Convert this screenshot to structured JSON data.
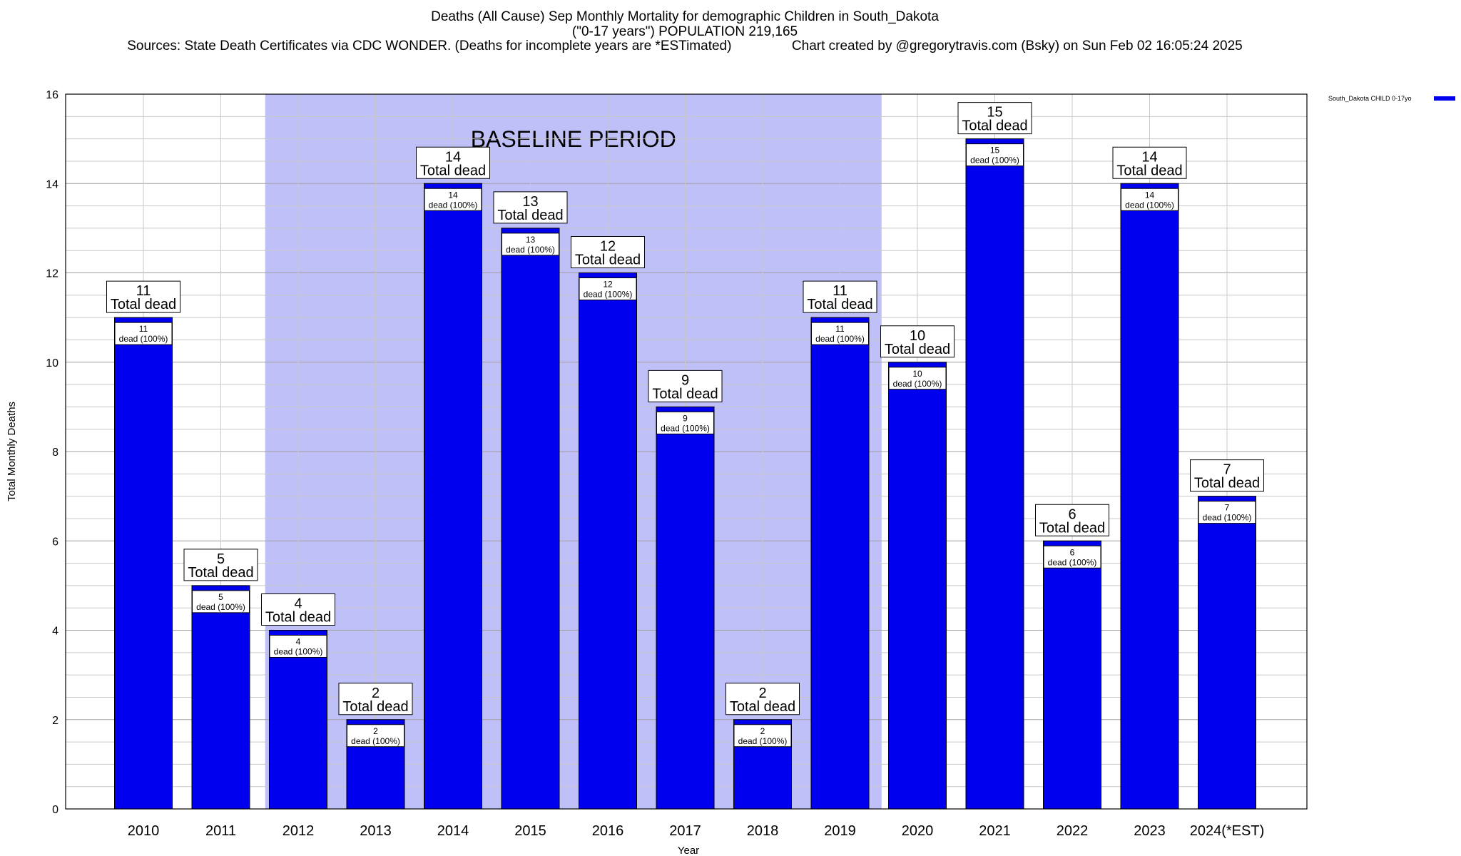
{
  "chart_data": {
    "type": "bar",
    "title": "Deaths (All Cause) Sep Monthly Mortality for demographic Children in South_Dakota",
    "subtitle": "(\"0-17 years\") POPULATION 219,165",
    "sources": "Sources: State Death Certificates via CDC WONDER. (Deaths for incomplete years are *ESTimated)",
    "credit": "Chart created by @gregorytravis.com (Bsky) on Sun Feb 02 16:05:24 2025",
    "xlabel": "Year",
    "ylabel": "Total Monthly Deaths",
    "ylim": [
      0,
      16
    ],
    "yticks": [
      0,
      2,
      4,
      6,
      8,
      10,
      12,
      14,
      16
    ],
    "grid": true,
    "legend_position": "top-right",
    "categories": [
      "2010",
      "2011",
      "2012",
      "2013",
      "2014",
      "2015",
      "2016",
      "2017",
      "2018",
      "2019",
      "2020",
      "2021",
      "2022",
      "2023",
      "2024(*EST)"
    ],
    "series": [
      {
        "name": "South_Dakota CHILD 0-17yo",
        "color": "#0000ee",
        "values": [
          11,
          5,
          4,
          2,
          14,
          13,
          12,
          9,
          2,
          11,
          10,
          15,
          6,
          14,
          7
        ]
      }
    ],
    "total_label": "Total dead",
    "inner_label_suffix": "dead (100%)",
    "baseline": {
      "label": "BASELINE PERIOD",
      "start": "2012",
      "end": "2019",
      "color": "#c0c0f8"
    }
  }
}
